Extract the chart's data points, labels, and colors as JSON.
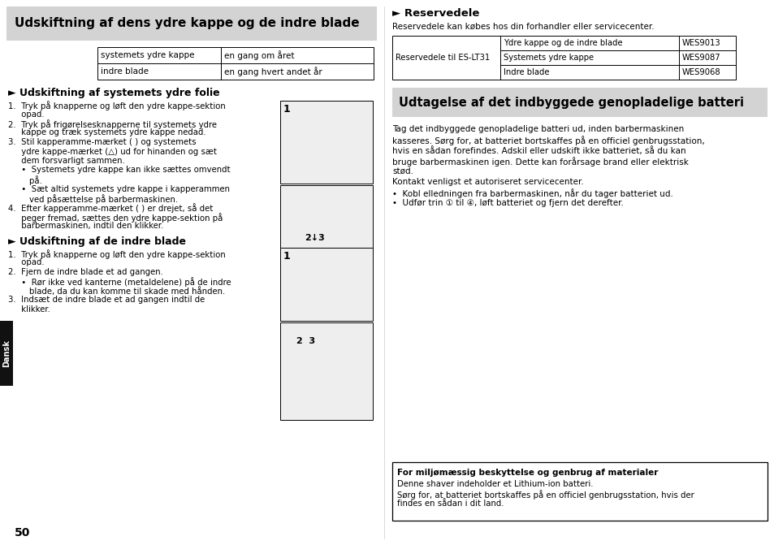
{
  "bg_color": "#ffffff",
  "left_title": "Udskiftning af dens ydre kappe og de indre blade",
  "right_title": "Udtagelse af det indbyggede genopladelige batteri",
  "title_bg": "#d3d3d3",
  "table1_rows": [
    [
      "systemets ydre kappe",
      "en gang om året"
    ],
    [
      "indre blade",
      "en gang hvert andet år"
    ]
  ],
  "sub1_title": "► Udskiftning af systemets ydre folie",
  "sub1_lines": [
    "1.  Tryk på knapperne og løft den ydre kappe-sektion",
    "     opad.",
    "2.  Tryk på frigørelsesknapperne til systemets ydre",
    "     kappe og træk systemets ydre kappe nedad.",
    "3.  Stil kapperamme-mærket ( ) og systemets",
    "     ydre kappe-mærket (△) ud for hinanden og sæt",
    "     dem forsvarligt sammen.",
    "     •  Systemets ydre kappe kan ikke sættes omvendt",
    "        på.",
    "     •  Sæt altid systemets ydre kappe i kapperammen",
    "        ved påsættelse på barbermaskinen.",
    "4.  Efter kapperamme-mærket ( ) er drejet, så det",
    "     peger fremad, sættes den ydre kappe-sektion på",
    "     barbermaskinen, indtil den klikker."
  ],
  "sub2_title": "► Udskiftning af de indre blade",
  "sub2_lines": [
    "1.  Tryk på knapperne og løft den ydre kappe-sektion",
    "     opad.",
    "2.  Fjern de indre blade et ad gangen.",
    "     •  Rør ikke ved kanterne (metaldelene) på de indre",
    "        blade, da du kan komme til skade med hånden.",
    "3.  Indsæt de indre blade et ad gangen indtil de",
    "     klikker."
  ],
  "res_title": "► Reservedele",
  "res_text": "Reservedele kan købes hos din forhandler eller servicecenter.",
  "table2_col1": "Reservedele til ES-LT31",
  "table2_rows": [
    [
      "Ydre kappe og de indre blade",
      "WES9013"
    ],
    [
      "Systemets ydre kappe",
      "WES9087"
    ],
    [
      "Indre blade",
      "WES9068"
    ]
  ],
  "right_lines": [
    "Tag det indbyggede genopladelige batteri ud, inden barbermaskinen",
    "kasseres. Sørg for, at batteriet bortskaffes på en officiel genbrugsstation,",
    "hvis en sådan forefindes. Adskil eller udskift ikke batteriet, så du kan",
    "bruge barbermaskinen igen. Dette kan forårsage brand eller elektrisk",
    "stød.",
    "Kontakt venligst et autoriseret servicecenter.",
    "•  Kobl elledningen fra barbermaskinen, når du tager batteriet ud.",
    "•  Udfør trin ① til ④, løft batteriet og fjern det derefter."
  ],
  "bottom_title": "For miljømæssig beskyttelse og genbrug af materialer",
  "bottom_lines": [
    "Denne shaver indeholder et Lithium-ion batteri.",
    "Sørg for, at batteriet bortskaffes på en officiel genbrugsstation, hvis der",
    "findes en sådan i dit land."
  ],
  "page_num": "50",
  "dansk": "Dansk"
}
